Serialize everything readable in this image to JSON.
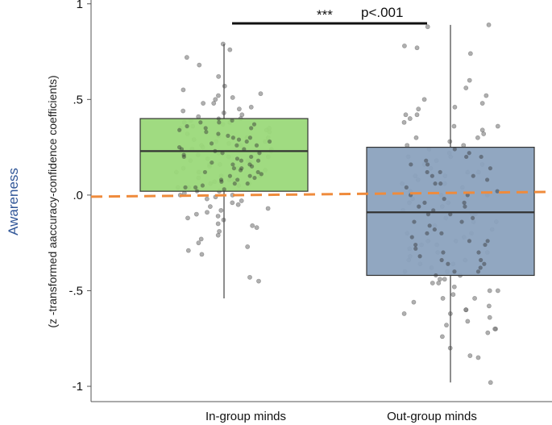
{
  "chart_data": {
    "type": "box",
    "title": "",
    "ylabel": "Awareness",
    "ylabel_sub": "(z -transformed aaccuracy-confidence coefficients)",
    "xlabel": "",
    "ylim": [
      -1.08,
      1.02
    ],
    "yticks": [
      {
        "value": 1,
        "label": "1"
      },
      {
        "value": 0.5,
        "label": ".5"
      },
      {
        "value": 0,
        "label": ".0"
      },
      {
        "value": -0.5,
        "label": "-.5"
      },
      {
        "value": -1,
        "label": "-1"
      }
    ],
    "categories": [
      "In-group minds",
      "Out-group minds"
    ],
    "boxes": [
      {
        "category": "In-group minds",
        "color": "#9bd97a",
        "whisker_low": -0.54,
        "q1": 0.02,
        "median": 0.23,
        "q3": 0.4,
        "whisker_high": 0.79
      },
      {
        "category": "Out-group minds",
        "color": "#8ba2be",
        "whisker_low": -0.98,
        "q1": -0.42,
        "median": -0.09,
        "q3": 0.25,
        "whisker_high": 0.89
      }
    ],
    "reference_line": {
      "y": 0.0,
      "color": "#ef8b3c",
      "style": "dashed"
    },
    "significance": {
      "stars": "***",
      "label": "p<.001"
    },
    "points": [
      {
        "group": 0,
        "ys": [
          0.79,
          0.76,
          0.72,
          0.68,
          0.62,
          0.57,
          0.55,
          0.53,
          0.51,
          0.5,
          0.48,
          0.46,
          0.45,
          0.44,
          0.43,
          0.41,
          0.4,
          0.39,
          0.38,
          0.37,
          0.36,
          0.35,
          0.34,
          0.33,
          0.32,
          0.31,
          0.3,
          0.29,
          0.28,
          0.27,
          0.26,
          0.25,
          0.24,
          0.23,
          0.22,
          0.21,
          0.2,
          0.19,
          0.18,
          0.17,
          0.16,
          0.15,
          0.14,
          0.13,
          0.12,
          0.11,
          0.1,
          0.09,
          0.08,
          0.07,
          0.06,
          0.05,
          0.04,
          0.03,
          0.02,
          0.01,
          0.0,
          -0.01,
          -0.03,
          -0.05,
          -0.07,
          -0.09,
          -0.11,
          -0.13,
          -0.15,
          -0.17,
          -0.19,
          -0.21,
          -0.23,
          -0.25,
          -0.27,
          -0.29,
          -0.31,
          -0.43,
          -0.45,
          0.35,
          0.28,
          0.22,
          0.18,
          0.14,
          0.08,
          0.04,
          -0.02,
          -0.06,
          -0.1,
          0.48,
          0.42,
          0.3,
          0.26,
          0.2,
          0.12,
          0.06,
          -0.04,
          0.52,
          0.38,
          0.24,
          0.16,
          0.1,
          0.0,
          -0.08,
          -0.12,
          -0.16
        ]
      },
      {
        "group": 1,
        "ys": [
          0.89,
          0.88,
          0.78,
          0.77,
          0.74,
          0.6,
          0.56,
          0.52,
          0.5,
          0.48,
          0.45,
          0.42,
          0.4,
          0.38,
          0.36,
          0.34,
          0.32,
          0.3,
          0.28,
          0.26,
          0.24,
          0.22,
          0.2,
          0.18,
          0.16,
          0.14,
          0.12,
          0.1,
          0.08,
          0.06,
          0.04,
          0.02,
          0.0,
          -0.02,
          -0.04,
          -0.06,
          -0.08,
          -0.1,
          -0.12,
          -0.14,
          -0.16,
          -0.18,
          -0.2,
          -0.22,
          -0.24,
          -0.26,
          -0.28,
          -0.3,
          -0.32,
          -0.34,
          -0.36,
          -0.38,
          -0.4,
          -0.42,
          -0.44,
          -0.46,
          -0.48,
          -0.5,
          -0.52,
          -0.54,
          -0.56,
          -0.58,
          -0.6,
          -0.62,
          -0.64,
          -0.66,
          -0.68,
          -0.7,
          -0.72,
          -0.74,
          -0.8,
          -0.84,
          -0.85,
          -0.98,
          0.46,
          0.36,
          0.26,
          0.16,
          0.06,
          -0.04,
          -0.14,
          -0.24,
          -0.34,
          -0.44,
          -0.54,
          0.3,
          0.2,
          0.1,
          0.0,
          -0.1,
          -0.2,
          -0.3,
          -0.4,
          -0.5,
          -0.6,
          0.42,
          0.12,
          -0.06,
          -0.26,
          -0.36,
          -0.46,
          -0.62,
          -0.7
        ]
      }
    ]
  }
}
